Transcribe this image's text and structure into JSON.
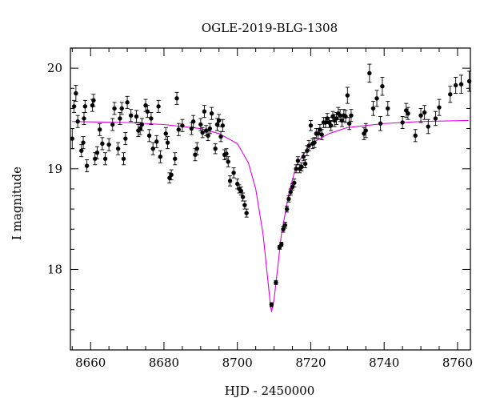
{
  "chart_data": {
    "type": "scatter",
    "title": "OGLE-2019-BLG-1308",
    "xlabel": "HJD - 2450000",
    "ylabel": "I magnitude",
    "xlim": [
      8654.5,
      8763.5
    ],
    "ylim": [
      20.2,
      17.2
    ],
    "y_inverted": true,
    "x_ticks": [
      8660,
      8680,
      8700,
      8720,
      8740,
      8760
    ],
    "y_ticks": [
      18,
      19,
      20
    ],
    "grid": false,
    "colors": {
      "points": "#000000",
      "model": "#e000e0",
      "axes": "#000000"
    },
    "model": {
      "name": "",
      "baseline_mag": 19.48,
      "peak_time": 8709.3,
      "peak_mag": 17.58,
      "x": [
        8655,
        8670,
        8680,
        8690,
        8695,
        8700,
        8703,
        8705,
        8707,
        8708,
        8709,
        8709.3,
        8710,
        8711,
        8712,
        8714,
        8716,
        8720,
        8725,
        8730,
        8740,
        8750,
        8763
      ],
      "y": [
        19.47,
        19.46,
        19.44,
        19.4,
        19.35,
        19.25,
        19.06,
        18.8,
        18.35,
        18.0,
        17.65,
        17.58,
        17.7,
        18.02,
        18.35,
        18.75,
        19.03,
        19.25,
        19.35,
        19.41,
        19.45,
        19.47,
        19.48
      ]
    },
    "series": [
      {
        "x": [
          8655,
          8655.5,
          8656,
          8656.5,
          8657.5,
          8658,
          8658.2,
          8658.5,
          8659,
          8660.5,
          8660.8,
          8661.2,
          8661.8,
          8662.5,
          8663.2,
          8664,
          8665,
          8666,
          8666.5,
          8667.5,
          8668,
          8668.5,
          8669,
          8669.5,
          8670,
          8671,
          8672.5,
          8673,
          8673.5,
          8674,
          8675,
          8675.5,
          8676,
          8676.5,
          8677,
          8678,
          8678.5,
          8679,
          8680.5,
          8681,
          8681.5,
          8682,
          8683,
          8683.5,
          8684,
          8685,
          8687.5,
          8688,
          8688.5,
          8689,
          8690,
          8690.5,
          8691,
          8691.5,
          8692,
          8692.5,
          8693,
          8694,
          8694.5,
          8695,
          8695.5,
          8696,
          8696.5,
          8697,
          8697.5,
          8698,
          8699,
          8700,
          8700.5,
          8701,
          8701.5,
          8702,
          8702.5,
          8709.3,
          8710.5,
          8711.5,
          8712,
          8712.5,
          8713,
          8713.5,
          8714,
          8714.5,
          8715,
          8715.5,
          8716,
          8716.5,
          8717,
          8717.5,
          8718,
          8718.5,
          8719,
          8719.5,
          8720,
          8720.5,
          8721,
          8721.5,
          8722,
          8722.5,
          8723,
          8723.5,
          8724,
          8724.5,
          8725,
          8725.5,
          8726,
          8726.5,
          8727,
          8727.5,
          8728,
          8728.5,
          8729,
          8729.5,
          8730,
          8730.5,
          8731,
          8734.5,
          8735,
          8736,
          8737,
          8738,
          8739,
          8739.5,
          8741,
          8745,
          8746,
          8746.5,
          8748.5,
          8750,
          8751,
          8752,
          8754,
          8755,
          8758,
          8759.5,
          8761,
          8763.2
        ],
        "y": [
          19.3,
          19.62,
          19.75,
          19.47,
          19.18,
          19.26,
          19.5,
          19.62,
          19.03,
          19.63,
          19.68,
          19.1,
          19.16,
          19.39,
          19.25,
          19.1,
          19.24,
          19.44,
          19.6,
          19.2,
          19.5,
          19.6,
          19.1,
          19.3,
          19.66,
          19.53,
          19.52,
          19.38,
          19.4,
          19.44,
          19.63,
          19.57,
          19.33,
          19.5,
          19.2,
          19.27,
          19.62,
          19.12,
          19.35,
          19.26,
          18.91,
          18.94,
          19.1,
          19.7,
          19.39,
          19.43,
          19.4,
          19.47,
          19.14,
          19.2,
          19.44,
          19.36,
          19.57,
          19.38,
          19.33,
          19.4,
          19.55,
          19.2,
          19.44,
          19.48,
          19.32,
          19.43,
          19.14,
          19.15,
          19.07,
          18.88,
          18.96,
          18.85,
          18.8,
          18.78,
          18.72,
          18.64,
          18.56,
          17.65,
          17.87,
          18.22,
          18.25,
          18.4,
          18.44,
          18.6,
          18.7,
          18.77,
          18.82,
          18.86,
          19.0,
          19.08,
          19.0,
          19.02,
          19.12,
          19.05,
          19.18,
          19.23,
          19.43,
          19.25,
          19.26,
          19.35,
          19.35,
          19.39,
          19.34,
          19.46,
          19.46,
          19.5,
          19.46,
          19.43,
          19.52,
          19.48,
          19.5,
          19.55,
          19.53,
          19.48,
          19.53,
          19.52,
          19.73,
          19.45,
          19.53,
          19.35,
          19.38,
          19.95,
          19.6,
          19.7,
          19.45,
          19.82,
          19.6,
          19.46,
          19.58,
          19.55,
          19.33,
          19.53,
          19.56,
          19.42,
          19.5,
          19.61,
          19.74,
          19.83,
          19.84,
          19.87
        ],
        "yerr": [
          0.1,
          0.06,
          0.08,
          0.06,
          0.06,
          0.06,
          0.06,
          0.06,
          0.06,
          0.06,
          0.06,
          0.06,
          0.06,
          0.06,
          0.06,
          0.06,
          0.06,
          0.06,
          0.06,
          0.06,
          0.06,
          0.06,
          0.06,
          0.06,
          0.06,
          0.06,
          0.06,
          0.06,
          0.06,
          0.06,
          0.06,
          0.06,
          0.06,
          0.06,
          0.06,
          0.06,
          0.06,
          0.06,
          0.06,
          0.06,
          0.05,
          0.05,
          0.06,
          0.06,
          0.06,
          0.06,
          0.06,
          0.06,
          0.06,
          0.06,
          0.06,
          0.05,
          0.06,
          0.05,
          0.05,
          0.05,
          0.06,
          0.05,
          0.06,
          0.06,
          0.05,
          0.06,
          0.05,
          0.05,
          0.05,
          0.05,
          0.05,
          0.05,
          0.04,
          0.04,
          0.04,
          0.04,
          0.04,
          0.02,
          0.02,
          0.02,
          0.02,
          0.03,
          0.03,
          0.03,
          0.03,
          0.03,
          0.03,
          0.04,
          0.04,
          0.04,
          0.04,
          0.04,
          0.04,
          0.04,
          0.05,
          0.05,
          0.05,
          0.05,
          0.05,
          0.05,
          0.05,
          0.05,
          0.05,
          0.05,
          0.05,
          0.05,
          0.05,
          0.05,
          0.05,
          0.06,
          0.06,
          0.06,
          0.06,
          0.06,
          0.06,
          0.06,
          0.08,
          0.06,
          0.06,
          0.06,
          0.07,
          0.09,
          0.07,
          0.08,
          0.07,
          0.09,
          0.07,
          0.06,
          0.07,
          0.06,
          0.06,
          0.07,
          0.07,
          0.07,
          0.07,
          0.08,
          0.08,
          0.08,
          0.09,
          0.1
        ]
      }
    ]
  }
}
